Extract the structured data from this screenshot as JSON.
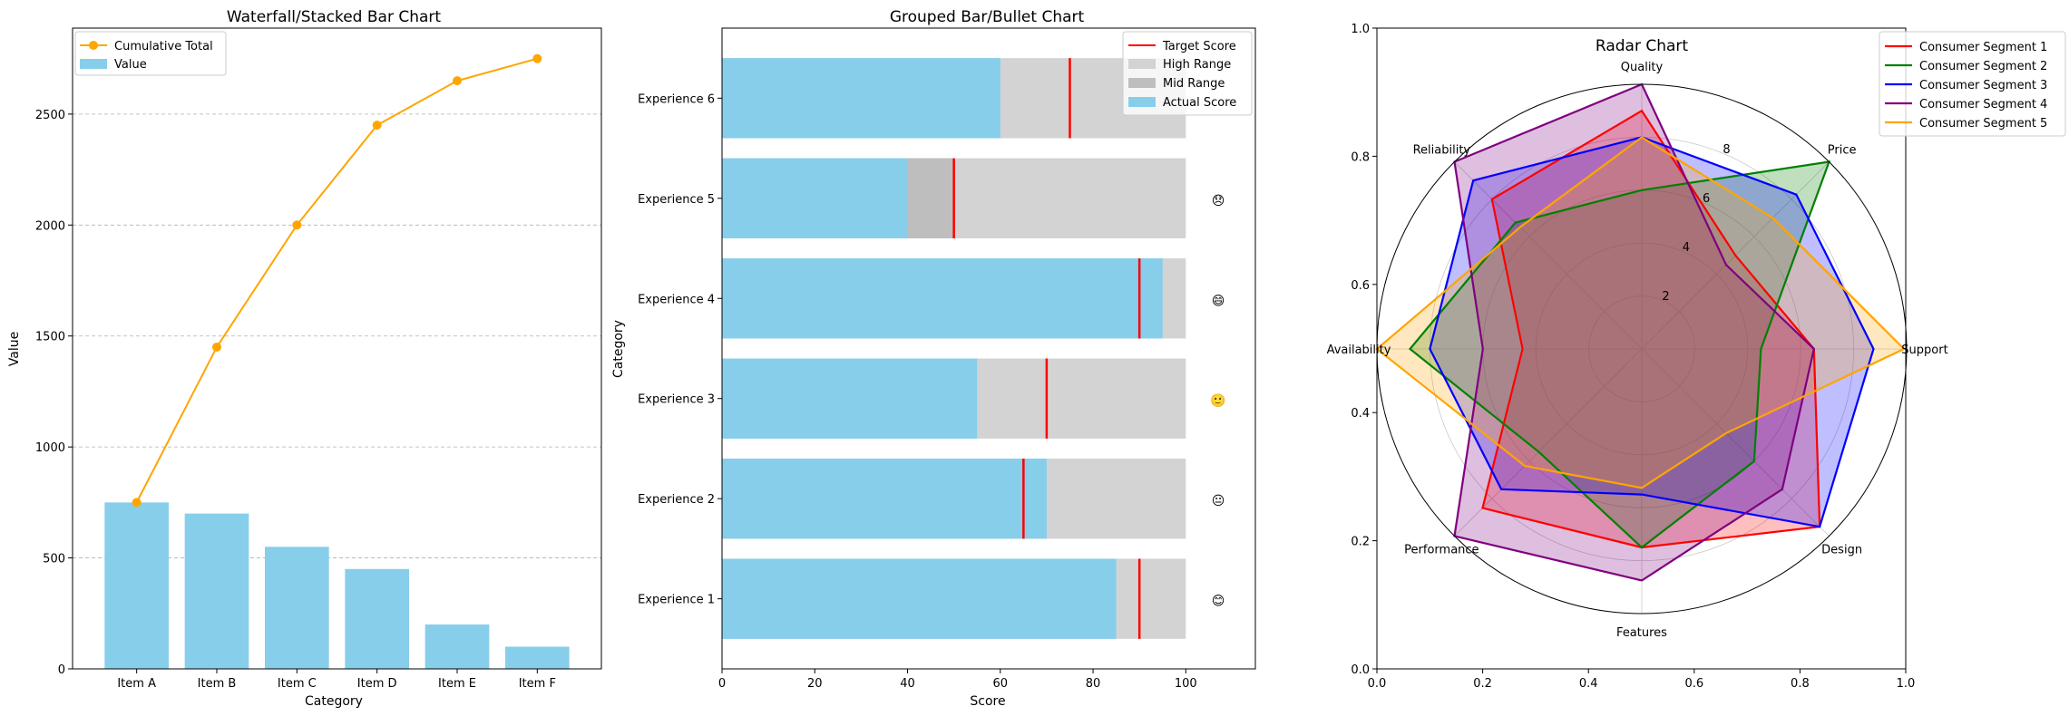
{
  "chart_data": [
    {
      "type": "bar",
      "title": "Waterfall/Stacked Bar Chart",
      "xlabel": "Category",
      "ylabel": "Value",
      "categories": [
        "Item A",
        "Item B",
        "Item C",
        "Item D",
        "Item E",
        "Item F"
      ],
      "series": [
        {
          "name": "Value",
          "kind": "bar",
          "color": "#87CEEB",
          "values": [
            750,
            700,
            550,
            450,
            200,
            100
          ]
        },
        {
          "name": "Cumulative Total",
          "kind": "line",
          "color": "#FFA500",
          "values": [
            750,
            1450,
            2000,
            2450,
            2650,
            2750
          ]
        }
      ],
      "ylim": [
        0,
        2887.5
      ],
      "yticks": [
        0,
        500,
        1000,
        1500,
        2000,
        2500
      ],
      "grid": "y-dashed",
      "legend_position": "upper left"
    },
    {
      "type": "bar",
      "orientation": "horizontal",
      "title": "Grouped Bar/Bullet Chart",
      "xlabel": "Score",
      "ylabel": "Category",
      "categories": [
        "Experience 1",
        "Experience 2",
        "Experience 3",
        "Experience 4",
        "Experience 5",
        "Experience 6"
      ],
      "series": [
        {
          "name": "Actual Score",
          "color": "#87CEEB",
          "values": [
            85,
            70,
            55,
            95,
            40,
            60
          ]
        },
        {
          "name": "Target Score",
          "color": "#FF0000",
          "values": [
            90,
            65,
            70,
            90,
            50,
            75
          ]
        },
        {
          "name": "Mid Range",
          "color": "#BEBEBE",
          "values": [
            0,
            0,
            0,
            0,
            50,
            0
          ]
        },
        {
          "name": "High Range",
          "color": "#D3D3D3",
          "values": [
            100,
            100,
            100,
            100,
            100,
            100
          ]
        }
      ],
      "emoji": [
        "😊",
        "😐",
        "🙂",
        "😄",
        "😞",
        ""
      ],
      "xlim": [
        0,
        115
      ],
      "xticks": [
        0,
        20,
        40,
        60,
        80,
        100
      ],
      "legend_position": "upper right"
    },
    {
      "type": "radar",
      "title": "Radar Chart",
      "axes": [
        "Quality",
        "Price",
        "Support",
        "Design",
        "Features",
        "Performance",
        "Availability",
        "Reliability"
      ],
      "rlim": [
        0,
        10
      ],
      "rticks": [
        2,
        4,
        6,
        8
      ],
      "outer_xticks": [
        0.0,
        0.2,
        0.4,
        0.6,
        0.8,
        1.0
      ],
      "outer_yticks": [
        0.0,
        0.2,
        0.4,
        0.6,
        0.8,
        1.0
      ],
      "series": [
        {
          "name": "Consumer Segment 1",
          "color": "#FF0000",
          "values": [
            9,
            5,
            6.5,
            9.5,
            7.5,
            8.5,
            4.5,
            8
          ]
        },
        {
          "name": "Consumer Segment 2",
          "color": "#008000",
          "values": [
            6,
            10,
            4.5,
            6,
            7.5,
            5.5,
            8.75,
            6.75
          ]
        },
        {
          "name": "Consumer Segment 3",
          "color": "#0000FF",
          "values": [
            8,
            8.25,
            8.75,
            9.5,
            5.5,
            7.5,
            8,
            9
          ]
        },
        {
          "name": "Consumer Segment 4",
          "color": "#800080",
          "values": [
            10,
            4.5,
            6.5,
            7.5,
            8.75,
            10,
            6,
            10
          ]
        },
        {
          "name": "Consumer Segment 5",
          "color": "#FFA500",
          "values": [
            8,
            7,
            9.9,
            4.5,
            5.25,
            6.25,
            10,
            6.5
          ]
        }
      ],
      "legend_position": "upper right outside"
    }
  ]
}
